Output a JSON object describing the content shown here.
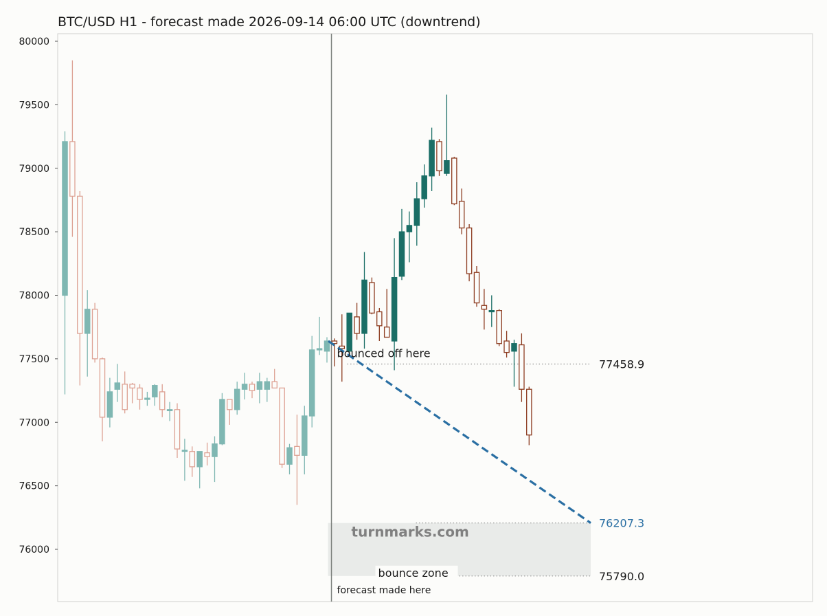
{
  "chart_data": {
    "type": "candlestick",
    "title": "BTC/USD H1 - forecast made 2026-09-14 06:00 UTC (downtrend)",
    "xlabel": "",
    "ylabel": "",
    "y_ticks": [
      80000,
      79500,
      79000,
      78500,
      78000,
      77500,
      77000,
      76500,
      76000
    ],
    "ylim": [
      75600,
      80060
    ],
    "grid": false,
    "colors": {
      "up_history": "#7fb7b2",
      "down_history": "#dda193",
      "up_forecast": "#1a6e66",
      "down_forecast": "#8c3b1f",
      "trend_line": "#2a6fa3",
      "zone_fill": "#e9ebe9",
      "watermark": "#808080",
      "divider": "#7b7f7b"
    },
    "history_candles": [
      {
        "o": 78000,
        "h": 79290,
        "l": 77220,
        "c": 79210
      },
      {
        "o": 79210,
        "h": 79850,
        "l": 78460,
        "c": 78780
      },
      {
        "o": 78780,
        "h": 78820,
        "l": 77290,
        "c": 77700
      },
      {
        "o": 77700,
        "h": 78040,
        "l": 77360,
        "c": 77890
      },
      {
        "o": 77890,
        "h": 77940,
        "l": 77470,
        "c": 77500
      },
      {
        "o": 77500,
        "h": 77510,
        "l": 76850,
        "c": 77040
      },
      {
        "o": 77040,
        "h": 77350,
        "l": 76960,
        "c": 77240
      },
      {
        "o": 77260,
        "h": 77460,
        "l": 77160,
        "c": 77310
      },
      {
        "o": 77300,
        "h": 77400,
        "l": 77070,
        "c": 77100
      },
      {
        "o": 77300,
        "h": 77310,
        "l": 77150,
        "c": 77270
      },
      {
        "o": 77270,
        "h": 77300,
        "l": 77100,
        "c": 77180
      },
      {
        "o": 77180,
        "h": 77240,
        "l": 77130,
        "c": 77190
      },
      {
        "o": 77200,
        "h": 77300,
        "l": 77130,
        "c": 77290
      },
      {
        "o": 77240,
        "h": 77300,
        "l": 77040,
        "c": 77100
      },
      {
        "o": 77100,
        "h": 77160,
        "l": 77010,
        "c": 77100
      },
      {
        "o": 77100,
        "h": 77150,
        "l": 76720,
        "c": 76790
      },
      {
        "o": 76780,
        "h": 76870,
        "l": 76540,
        "c": 76780
      },
      {
        "o": 76770,
        "h": 76810,
        "l": 76570,
        "c": 76650
      },
      {
        "o": 76650,
        "h": 76770,
        "l": 76480,
        "c": 76770
      },
      {
        "o": 76760,
        "h": 76840,
        "l": 76660,
        "c": 76730
      },
      {
        "o": 76730,
        "h": 76890,
        "l": 76530,
        "c": 76830
      },
      {
        "o": 76830,
        "h": 77230,
        "l": 76820,
        "c": 77180
      },
      {
        "o": 77180,
        "h": 77180,
        "l": 76980,
        "c": 77100
      },
      {
        "o": 77100,
        "h": 77320,
        "l": 77060,
        "c": 77260
      },
      {
        "o": 77260,
        "h": 77390,
        "l": 77180,
        "c": 77300
      },
      {
        "o": 77300,
        "h": 77320,
        "l": 77190,
        "c": 77250
      },
      {
        "o": 77260,
        "h": 77390,
        "l": 77150,
        "c": 77320
      },
      {
        "o": 77260,
        "h": 77350,
        "l": 77160,
        "c": 77320
      },
      {
        "o": 77320,
        "h": 77420,
        "l": 77270,
        "c": 77270
      },
      {
        "o": 77270,
        "h": 77270,
        "l": 76640,
        "c": 76670
      },
      {
        "o": 76670,
        "h": 76830,
        "l": 76590,
        "c": 76800
      },
      {
        "o": 76810,
        "h": 77060,
        "l": 76350,
        "c": 76740
      },
      {
        "o": 76740,
        "h": 77130,
        "l": 76590,
        "c": 77050
      },
      {
        "o": 77050,
        "h": 77680,
        "l": 76960,
        "c": 77570
      },
      {
        "o": 77570,
        "h": 77830,
        "l": 77530,
        "c": 77580
      },
      {
        "o": 77560,
        "h": 77670,
        "l": 77470,
        "c": 77640
      }
    ],
    "forecast_candles": [
      {
        "o": 77640,
        "h": 77660,
        "l": 77440,
        "c": 77620
      },
      {
        "o": 77600,
        "h": 77850,
        "l": 77320,
        "c": 77580
      },
      {
        "o": 77560,
        "h": 77860,
        "l": 77520,
        "c": 77860
      },
      {
        "o": 77830,
        "h": 77940,
        "l": 77650,
        "c": 77700
      },
      {
        "o": 77700,
        "h": 78340,
        "l": 77580,
        "c": 78120
      },
      {
        "o": 78100,
        "h": 78140,
        "l": 77850,
        "c": 77860
      },
      {
        "o": 77870,
        "h": 77900,
        "l": 77640,
        "c": 77760
      },
      {
        "o": 77750,
        "h": 78050,
        "l": 77690,
        "c": 77670
      },
      {
        "o": 77640,
        "h": 78450,
        "l": 77410,
        "c": 78140
      },
      {
        "o": 78150,
        "h": 78680,
        "l": 78120,
        "c": 78500
      },
      {
        "o": 78500,
        "h": 78660,
        "l": 78260,
        "c": 78550
      },
      {
        "o": 78550,
        "h": 78890,
        "l": 78390,
        "c": 78760
      },
      {
        "o": 78760,
        "h": 79030,
        "l": 78690,
        "c": 78940
      },
      {
        "o": 78940,
        "h": 79320,
        "l": 78820,
        "c": 79220
      },
      {
        "o": 79210,
        "h": 79230,
        "l": 78940,
        "c": 78980
      },
      {
        "o": 78960,
        "h": 79580,
        "l": 78940,
        "c": 79060
      },
      {
        "o": 79080,
        "h": 79090,
        "l": 78710,
        "c": 78720
      },
      {
        "o": 78740,
        "h": 78840,
        "l": 78480,
        "c": 78530
      },
      {
        "o": 78530,
        "h": 78560,
        "l": 78110,
        "c": 78170
      },
      {
        "o": 78180,
        "h": 78230,
        "l": 77910,
        "c": 77940
      },
      {
        "o": 77920,
        "h": 78050,
        "l": 77730,
        "c": 77890
      },
      {
        "o": 77870,
        "h": 78000,
        "l": 77750,
        "c": 77880
      },
      {
        "o": 77880,
        "h": 77890,
        "l": 77600,
        "c": 77620
      },
      {
        "o": 77640,
        "h": 77720,
        "l": 77510,
        "c": 77550
      },
      {
        "o": 77560,
        "h": 77650,
        "l": 77280,
        "c": 77620
      },
      {
        "o": 77610,
        "h": 77700,
        "l": 77160,
        "c": 77260
      },
      {
        "o": 77260,
        "h": 77280,
        "l": 76820,
        "c": 76900
      }
    ],
    "levels": [
      {
        "value": 77458.9,
        "label": "77458.9"
      },
      {
        "value": 76207.3,
        "label": "76207.3"
      },
      {
        "value": 75790.0,
        "label": "75790.0"
      }
    ],
    "trend_line": {
      "from": 77640,
      "to": 76207.3
    },
    "bounce_zone": {
      "low": 75790.0,
      "high": 76207.3
    },
    "annotations": {
      "bounced": "bounced off here",
      "bounce_zone": "bounce zone",
      "forecast_made": "forecast made here",
      "watermark": "turnmarks.com"
    }
  }
}
